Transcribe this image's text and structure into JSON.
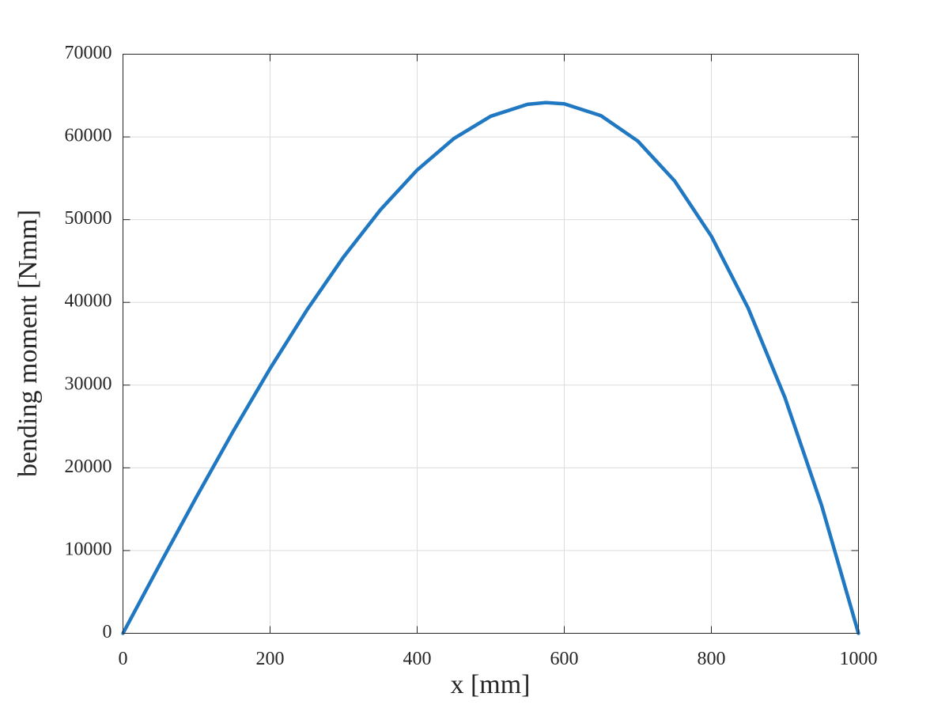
{
  "chart_data": {
    "type": "line",
    "xlabel": "x [mm]",
    "ylabel": "bending moment [Nmm]",
    "x": [
      0,
      50,
      100,
      150,
      200,
      250,
      300,
      350,
      400,
      450,
      500,
      550,
      575,
      600,
      650,
      700,
      750,
      800,
      850,
      900,
      950,
      1000
    ],
    "values": [
      0,
      8312.5,
      16500,
      24437.5,
      32000,
      39062.5,
      45500,
      51187.5,
      56000,
      59812.5,
      62500,
      63937.5,
      64148.4,
      64000,
      62562.5,
      59500,
      54687.5,
      48000,
      39312.5,
      28500,
      15437.5,
      0
    ],
    "color": "#1f78c1",
    "xlim": [
      0,
      1000
    ],
    "ylim": [
      0,
      70000
    ],
    "xticks": [
      0,
      200,
      400,
      600,
      800,
      1000
    ],
    "yticks": [
      0,
      10000,
      20000,
      30000,
      40000,
      50000,
      60000,
      70000
    ],
    "grid": true
  }
}
